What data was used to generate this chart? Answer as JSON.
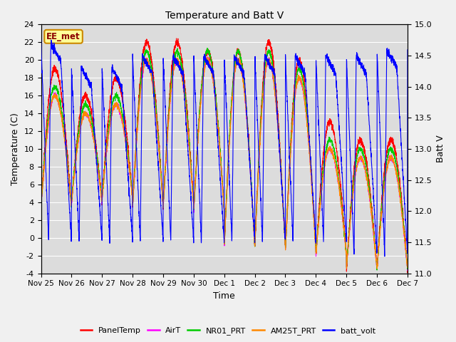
{
  "title": "Temperature and Batt V",
  "xlabel": "Time",
  "ylabel_left": "Temperature (C)",
  "ylabel_right": "Batt V",
  "ylim_left": [
    -4,
    24
  ],
  "ylim_right": [
    11.0,
    15.0
  ],
  "yticks_left": [
    -4,
    -2,
    0,
    2,
    4,
    6,
    8,
    10,
    12,
    14,
    16,
    18,
    20,
    22,
    24
  ],
  "yticks_right": [
    11.0,
    11.5,
    12.0,
    12.5,
    13.0,
    13.5,
    14.0,
    14.5,
    15.0
  ],
  "xtick_labels": [
    "Nov 25",
    "Nov 26",
    "Nov 27",
    "Nov 28",
    "Nov 29",
    "Nov 30",
    "Dec 1",
    "Dec 2",
    "Dec 3",
    "Dec 4",
    "Dec 5",
    "Dec 6",
    "Dec 7"
  ],
  "station_label": "EE_met",
  "colors": {
    "PanelTemp": "#ff0000",
    "AirT": "#ff00ff",
    "NR01_PRT": "#00cc00",
    "AM25T_PRT": "#ff8800",
    "batt_volt": "#0000ff"
  },
  "fig_bg_color": "#f0f0f0",
  "plot_bg_color": "#dcdcdc",
  "grid_color": "#ffffff",
  "n_days": 12,
  "pts_per_day": 288
}
